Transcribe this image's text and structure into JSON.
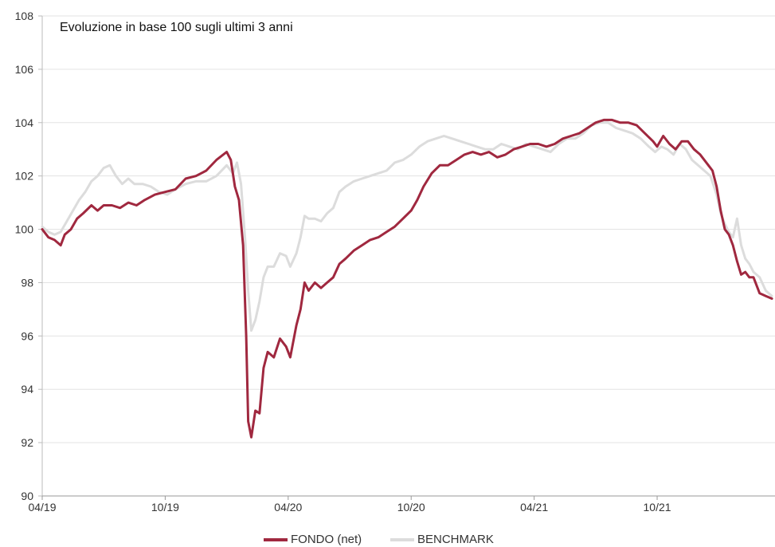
{
  "chart_data": {
    "type": "line",
    "title": "Evoluzione in base 100 sugli ultimi 3 anni",
    "xlabel": "",
    "ylabel": "",
    "ylim": [
      90,
      108
    ],
    "y_ticks": [
      "90",
      "92",
      "94",
      "96",
      "98",
      "100",
      "102",
      "104",
      "106",
      "108"
    ],
    "x_ticks": [
      "04/19",
      "10/19",
      "04/20",
      "10/20",
      "04/21",
      "10/21"
    ],
    "x_range": [
      "04/19",
      "02/22"
    ],
    "grid": "horizontal",
    "legend_position": "bottom-center",
    "series": [
      {
        "name": "FONDO (net)",
        "color": "#a0283f",
        "points": [
          [
            0,
            100.0
          ],
          [
            0.3,
            99.7
          ],
          [
            0.6,
            99.6
          ],
          [
            0.9,
            99.4
          ],
          [
            1.1,
            99.8
          ],
          [
            1.4,
            100.0
          ],
          [
            1.7,
            100.4
          ],
          [
            2.0,
            100.6
          ],
          [
            2.4,
            100.9
          ],
          [
            2.7,
            100.7
          ],
          [
            3.0,
            100.9
          ],
          [
            3.4,
            100.9
          ],
          [
            3.8,
            100.8
          ],
          [
            4.2,
            101.0
          ],
          [
            4.6,
            100.9
          ],
          [
            5.0,
            101.1
          ],
          [
            5.5,
            101.3
          ],
          [
            6.0,
            101.4
          ],
          [
            6.5,
            101.5
          ],
          [
            7.0,
            101.9
          ],
          [
            7.5,
            102.0
          ],
          [
            8.0,
            102.2
          ],
          [
            8.5,
            102.6
          ],
          [
            9.0,
            102.9
          ],
          [
            9.2,
            102.6
          ],
          [
            9.4,
            101.6
          ],
          [
            9.6,
            101.1
          ],
          [
            9.8,
            99.4
          ],
          [
            9.95,
            96.0
          ],
          [
            10.05,
            92.8
          ],
          [
            10.2,
            92.2
          ],
          [
            10.4,
            93.2
          ],
          [
            10.6,
            93.1
          ],
          [
            10.8,
            94.8
          ],
          [
            11.0,
            95.4
          ],
          [
            11.3,
            95.2
          ],
          [
            11.6,
            95.9
          ],
          [
            11.9,
            95.6
          ],
          [
            12.1,
            95.2
          ],
          [
            12.4,
            96.4
          ],
          [
            12.6,
            97.0
          ],
          [
            12.8,
            98.0
          ],
          [
            13.0,
            97.7
          ],
          [
            13.3,
            98.0
          ],
          [
            13.6,
            97.8
          ],
          [
            13.9,
            98.0
          ],
          [
            14.2,
            98.2
          ],
          [
            14.5,
            98.7
          ],
          [
            14.8,
            98.9
          ],
          [
            15.2,
            99.2
          ],
          [
            15.6,
            99.4
          ],
          [
            16.0,
            99.6
          ],
          [
            16.4,
            99.7
          ],
          [
            16.8,
            99.9
          ],
          [
            17.2,
            100.1
          ],
          [
            17.6,
            100.4
          ],
          [
            18.0,
            100.7
          ],
          [
            18.3,
            101.1
          ],
          [
            18.6,
            101.6
          ],
          [
            19.0,
            102.1
          ],
          [
            19.4,
            102.4
          ],
          [
            19.8,
            102.4
          ],
          [
            20.2,
            102.6
          ],
          [
            20.6,
            102.8
          ],
          [
            21.0,
            102.9
          ],
          [
            21.4,
            102.8
          ],
          [
            21.8,
            102.9
          ],
          [
            22.2,
            102.7
          ],
          [
            22.6,
            102.8
          ],
          [
            23.0,
            103.0
          ],
          [
            23.4,
            103.1
          ],
          [
            23.8,
            103.2
          ],
          [
            24.2,
            103.2
          ],
          [
            24.6,
            103.1
          ],
          [
            25.0,
            103.2
          ],
          [
            25.4,
            103.4
          ],
          [
            25.8,
            103.5
          ],
          [
            26.2,
            103.6
          ],
          [
            26.6,
            103.8
          ],
          [
            27.0,
            104.0
          ],
          [
            27.4,
            104.1
          ],
          [
            27.8,
            104.1
          ],
          [
            28.2,
            104.0
          ],
          [
            28.6,
            104.0
          ],
          [
            29.0,
            103.9
          ],
          [
            29.4,
            103.6
          ],
          [
            29.8,
            103.3
          ],
          [
            30.0,
            103.1
          ],
          [
            30.3,
            103.5
          ],
          [
            30.6,
            103.2
          ],
          [
            30.9,
            103.0
          ],
          [
            31.2,
            103.3
          ],
          [
            31.5,
            103.3
          ],
          [
            31.8,
            103.0
          ],
          [
            32.1,
            102.8
          ],
          [
            32.4,
            102.5
          ],
          [
            32.7,
            102.2
          ],
          [
            32.9,
            101.6
          ],
          [
            33.1,
            100.7
          ],
          [
            33.3,
            100.0
          ],
          [
            33.5,
            99.8
          ],
          [
            33.7,
            99.4
          ],
          [
            33.9,
            98.8
          ],
          [
            34.1,
            98.3
          ],
          [
            34.3,
            98.4
          ],
          [
            34.5,
            98.2
          ],
          [
            34.7,
            98.2
          ],
          [
            35.0,
            97.6
          ],
          [
            35.3,
            97.5
          ],
          [
            35.6,
            97.4
          ]
        ]
      },
      {
        "name": "BENCHMARK",
        "color": "#dcdcdc",
        "points": [
          [
            0,
            100.1
          ],
          [
            0.3,
            99.9
          ],
          [
            0.6,
            99.8
          ],
          [
            0.9,
            99.9
          ],
          [
            1.2,
            100.3
          ],
          [
            1.5,
            100.7
          ],
          [
            1.8,
            101.1
          ],
          [
            2.1,
            101.4
          ],
          [
            2.4,
            101.8
          ],
          [
            2.7,
            102.0
          ],
          [
            3.0,
            102.3
          ],
          [
            3.3,
            102.4
          ],
          [
            3.6,
            102.0
          ],
          [
            3.9,
            101.7
          ],
          [
            4.2,
            101.9
          ],
          [
            4.5,
            101.7
          ],
          [
            4.9,
            101.7
          ],
          [
            5.3,
            101.6
          ],
          [
            5.7,
            101.4
          ],
          [
            6.1,
            101.3
          ],
          [
            6.5,
            101.5
          ],
          [
            7.0,
            101.7
          ],
          [
            7.5,
            101.8
          ],
          [
            8.0,
            101.8
          ],
          [
            8.5,
            102.0
          ],
          [
            9.0,
            102.4
          ],
          [
            9.3,
            102.1
          ],
          [
            9.5,
            102.5
          ],
          [
            9.7,
            101.7
          ],
          [
            9.9,
            99.6
          ],
          [
            10.05,
            97.7
          ],
          [
            10.2,
            96.2
          ],
          [
            10.4,
            96.6
          ],
          [
            10.6,
            97.3
          ],
          [
            10.8,
            98.2
          ],
          [
            11.0,
            98.6
          ],
          [
            11.3,
            98.6
          ],
          [
            11.6,
            99.1
          ],
          [
            11.9,
            99.0
          ],
          [
            12.1,
            98.6
          ],
          [
            12.4,
            99.1
          ],
          [
            12.6,
            99.7
          ],
          [
            12.8,
            100.5
          ],
          [
            13.0,
            100.4
          ],
          [
            13.3,
            100.4
          ],
          [
            13.6,
            100.3
          ],
          [
            13.9,
            100.6
          ],
          [
            14.2,
            100.8
          ],
          [
            14.5,
            101.4
          ],
          [
            14.8,
            101.6
          ],
          [
            15.2,
            101.8
          ],
          [
            15.6,
            101.9
          ],
          [
            16.0,
            102.0
          ],
          [
            16.4,
            102.1
          ],
          [
            16.8,
            102.2
          ],
          [
            17.2,
            102.5
          ],
          [
            17.6,
            102.6
          ],
          [
            18.0,
            102.8
          ],
          [
            18.4,
            103.1
          ],
          [
            18.8,
            103.3
          ],
          [
            19.2,
            103.4
          ],
          [
            19.6,
            103.5
          ],
          [
            20.0,
            103.4
          ],
          [
            20.4,
            103.3
          ],
          [
            20.8,
            103.2
          ],
          [
            21.2,
            103.1
          ],
          [
            21.6,
            103.0
          ],
          [
            22.0,
            103.0
          ],
          [
            22.4,
            103.2
          ],
          [
            22.8,
            103.1
          ],
          [
            23.2,
            103.0
          ],
          [
            23.6,
            103.2
          ],
          [
            24.0,
            103.1
          ],
          [
            24.4,
            103.0
          ],
          [
            24.8,
            102.9
          ],
          [
            25.2,
            103.2
          ],
          [
            25.6,
            103.4
          ],
          [
            26.0,
            103.4
          ],
          [
            26.4,
            103.6
          ],
          [
            26.8,
            103.9
          ],
          [
            27.2,
            104.0
          ],
          [
            27.6,
            104.0
          ],
          [
            28.0,
            103.8
          ],
          [
            28.4,
            103.7
          ],
          [
            28.8,
            103.6
          ],
          [
            29.2,
            103.4
          ],
          [
            29.6,
            103.1
          ],
          [
            29.9,
            102.9
          ],
          [
            30.2,
            103.1
          ],
          [
            30.5,
            103.0
          ],
          [
            30.8,
            102.8
          ],
          [
            31.1,
            103.2
          ],
          [
            31.4,
            103.0
          ],
          [
            31.7,
            102.6
          ],
          [
            32.0,
            102.4
          ],
          [
            32.3,
            102.2
          ],
          [
            32.6,
            102.0
          ],
          [
            32.9,
            101.3
          ],
          [
            33.1,
            100.6
          ],
          [
            33.3,
            100.2
          ],
          [
            33.5,
            99.9
          ],
          [
            33.7,
            99.7
          ],
          [
            33.9,
            100.4
          ],
          [
            34.1,
            99.4
          ],
          [
            34.3,
            98.9
          ],
          [
            34.5,
            98.7
          ],
          [
            34.7,
            98.4
          ],
          [
            35.0,
            98.2
          ],
          [
            35.3,
            97.7
          ],
          [
            35.6,
            97.5
          ]
        ]
      }
    ]
  }
}
